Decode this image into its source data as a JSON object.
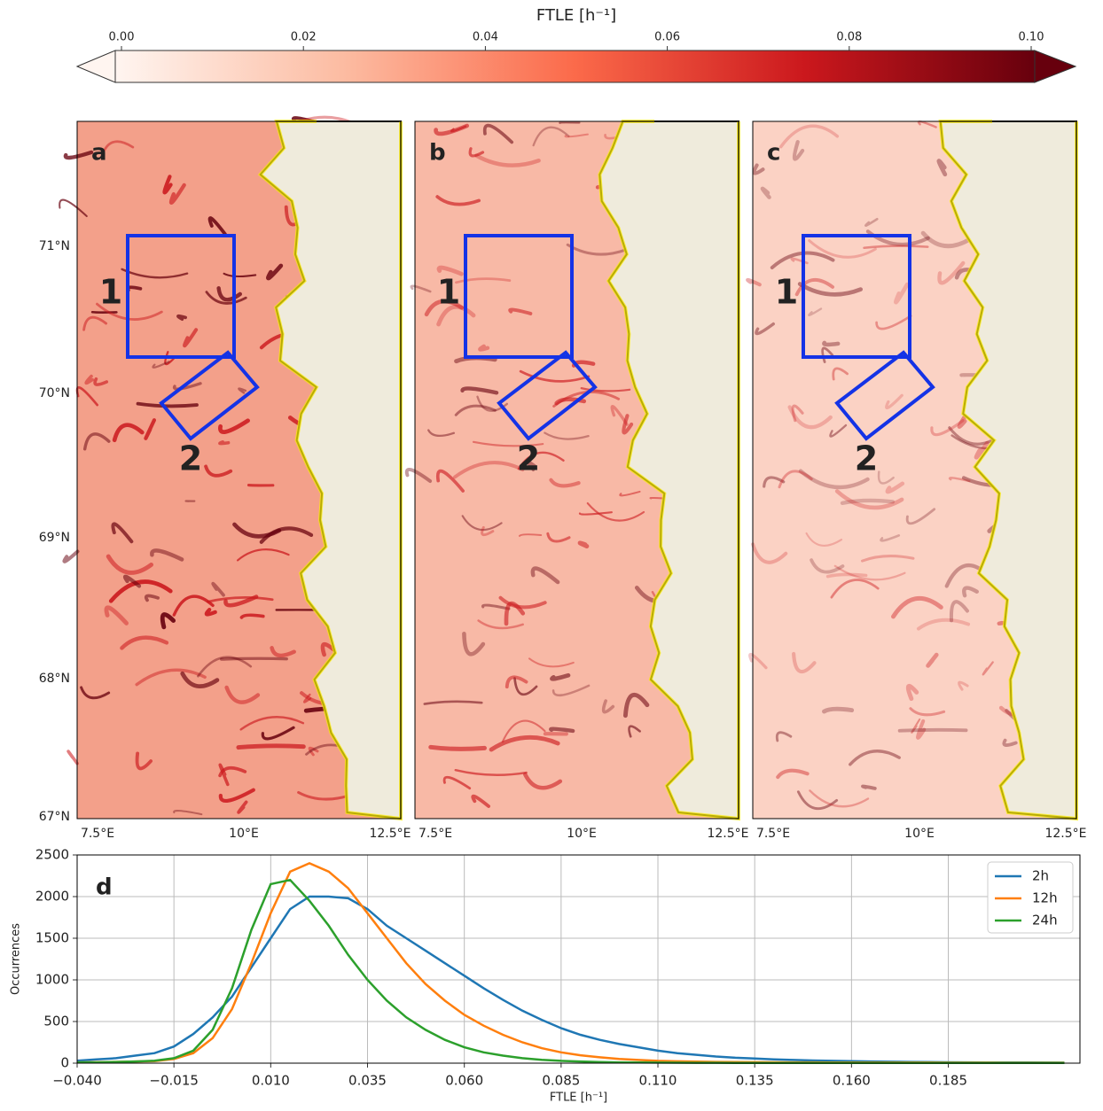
{
  "colorbar": {
    "label": "FTLE [h⁻¹]",
    "lim": [
      0,
      0.1
    ],
    "ticks": [
      {
        "value": 0,
        "label": "0.00"
      },
      {
        "value": 0.02,
        "label": "0.02"
      },
      {
        "value": 0.04,
        "label": "0.04"
      },
      {
        "value": 0.06,
        "label": "0.06"
      },
      {
        "value": 0.08,
        "label": "0.08"
      },
      {
        "value": 0.1,
        "label": "0.10"
      }
    ]
  },
  "maps": {
    "panels": [
      "a",
      "b",
      "c"
    ],
    "lat_labels": [
      "71°N",
      "70°N",
      "69°N",
      "68°N",
      "67°N"
    ],
    "lon_labels": [
      "7.5°E",
      "10°E",
      "12.5°E"
    ],
    "region_labels": [
      "1",
      "2"
    ]
  },
  "chart_data": {
    "type": "line",
    "panel_label": "d",
    "x_label": "FTLE [h⁻¹]",
    "y_label": "Occurrences",
    "x": [
      -0.04,
      -0.035,
      -0.03,
      -0.025,
      -0.02,
      -0.015,
      -0.01,
      -0.005,
      0,
      0.005,
      0.01,
      0.015,
      0.02,
      0.025,
      0.03,
      0.035,
      0.04,
      0.045,
      0.05,
      0.055,
      0.06,
      0.065,
      0.07,
      0.075,
      0.08,
      0.085,
      0.09,
      0.095,
      0.1,
      0.105,
      0.11,
      0.115,
      0.12,
      0.125,
      0.13,
      0.135,
      0.14,
      0.145,
      0.15,
      0.155,
      0.16,
      0.165,
      0.17,
      0.175,
      0.18,
      0.185,
      0.19,
      0.195,
      0.2,
      0.205,
      0.21,
      0.215
    ],
    "series": [
      {
        "name": "2h",
        "color": "#1f77b4",
        "values": [
          30,
          45,
          60,
          90,
          120,
          200,
          350,
          550,
          800,
          1150,
          1500,
          1850,
          2000,
          2000,
          1980,
          1850,
          1650,
          1500,
          1350,
          1200,
          1050,
          900,
          760,
          630,
          520,
          420,
          340,
          280,
          230,
          190,
          150,
          120,
          100,
          80,
          65,
          55,
          45,
          38,
          32,
          28,
          24,
          20,
          17,
          15,
          13,
          11,
          10,
          9,
          8,
          7,
          6,
          5
        ]
      },
      {
        "name": "12h",
        "color": "#ff7f0e",
        "values": [
          10,
          12,
          15,
          20,
          25,
          50,
          120,
          300,
          650,
          1200,
          1800,
          2300,
          2400,
          2300,
          2100,
          1800,
          1500,
          1200,
          950,
          750,
          580,
          450,
          340,
          250,
          180,
          130,
          95,
          70,
          50,
          38,
          28,
          22,
          18,
          15,
          13,
          12,
          11,
          10,
          10,
          9,
          9,
          8,
          8,
          7,
          7,
          6,
          6,
          6,
          5,
          5,
          5,
          5
        ]
      },
      {
        "name": "24h",
        "color": "#2ca02c",
        "values": [
          10,
          10,
          15,
          20,
          30,
          60,
          150,
          400,
          900,
          1600,
          2150,
          2200,
          1950,
          1650,
          1300,
          1000,
          750,
          550,
          400,
          280,
          190,
          130,
          90,
          60,
          40,
          28,
          20,
          14,
          10,
          8,
          6,
          5,
          4,
          4,
          3,
          3,
          3,
          2,
          2,
          2,
          2,
          2,
          2,
          2,
          2,
          2,
          2,
          2,
          2,
          2,
          2,
          2
        ]
      }
    ],
    "xlim": [
      -0.04,
      0.219
    ],
    "ylim": [
      0,
      2500
    ],
    "xticks": [
      {
        "value": -0.04,
        "label": "−0.040"
      },
      {
        "value": -0.015,
        "label": "−0.015"
      },
      {
        "value": 0.01,
        "label": "0.010"
      },
      {
        "value": 0.035,
        "label": "0.035"
      },
      {
        "value": 0.06,
        "label": "0.060"
      },
      {
        "value": 0.085,
        "label": "0.085"
      },
      {
        "value": 0.11,
        "label": "0.110"
      },
      {
        "value": 0.135,
        "label": "0.135"
      },
      {
        "value": 0.16,
        "label": "0.160"
      },
      {
        "value": 0.185,
        "label": "0.185"
      }
    ],
    "yticks": [
      0,
      500,
      1000,
      1500,
      2000,
      2500
    ],
    "grid": true,
    "legend": "upper-right"
  }
}
